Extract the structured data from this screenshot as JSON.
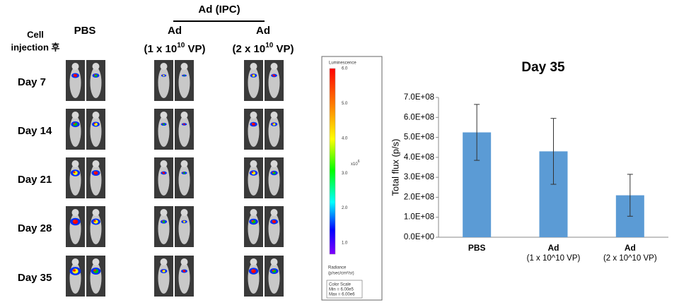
{
  "panel": {
    "row_header": [
      "Cell",
      "injection 후"
    ],
    "group_header": "Ad (IPC)",
    "columns": [
      {
        "title": "PBS"
      },
      {
        "title": "Ad",
        "dose": {
          "prefix": "(1 x 10",
          "sup": "10",
          "suffix": " VP)"
        }
      },
      {
        "title": "Ad",
        "dose": {
          "prefix": "(2 x 10",
          "sup": "10",
          "suffix": " VP)"
        }
      }
    ],
    "rows": [
      "Day 7",
      "Day 14",
      "Day 21",
      "Day 28",
      "Day 35"
    ]
  },
  "colorbar": {
    "title": "Luminescence",
    "ticks": [
      "6.0",
      "5.0",
      "4.0",
      "3.0",
      "2.0",
      "1.0"
    ],
    "multiplier": {
      "base": "x10",
      "sup": "6"
    },
    "unit_title": "Radiance",
    "unit": "(p/sec/cm²/sr)",
    "scale_title": "Color Scale",
    "min": "Min = 6.00e5",
    "max": "Max = 6.00e6"
  },
  "chart_data": {
    "type": "bar",
    "title": "Day 35",
    "y_label": "Total flux (p/s)",
    "categories": [
      "PBS",
      "Ad\n(1 x 10^10 VP)",
      "Ad\n(2 x 10^10 VP)"
    ],
    "values": [
      525000000,
      430000000,
      210000000
    ],
    "errors": [
      140000000,
      165000000,
      105000000
    ],
    "color": "#5b9bd5",
    "ylim": [
      0,
      700000000
    ],
    "yticks": [
      {
        "value": 0,
        "label": "0.0E+00"
      },
      {
        "value": 100000000,
        "label": "1.0E+08"
      },
      {
        "value": 200000000,
        "label": "2.0E+08"
      },
      {
        "value": 300000000,
        "label": "3.0E+08"
      },
      {
        "value": 400000000,
        "label": "4.0E+08"
      },
      {
        "value": 500000000,
        "label": "5.0E+08"
      },
      {
        "value": 600000000,
        "label": "6.0E+08"
      },
      {
        "value": 700000000,
        "label": "7.0E+08"
      }
    ]
  }
}
